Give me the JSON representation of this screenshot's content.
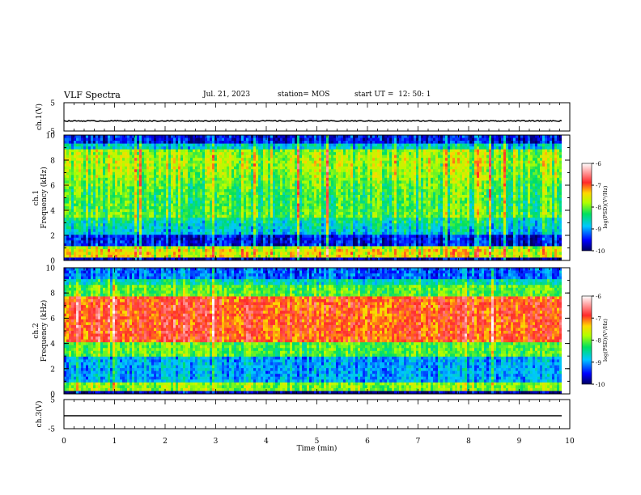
{
  "header": {
    "title": "VLF Spectra",
    "date": "Jul. 21, 2023",
    "station": "station= MOS",
    "start_ut": "start UT =  12: 50: 1"
  },
  "chart_data": [
    {
      "type": "line",
      "panel": "ch1-voltage",
      "ylabel": "ch.1(V)",
      "yticks": [
        "5",
        "-5"
      ],
      "ylim": [
        -5,
        5
      ],
      "xlim": [
        0,
        10
      ],
      "series": [
        {
          "x": [
            0,
            9.84
          ],
          "y": [
            0,
            0
          ]
        }
      ]
    },
    {
      "type": "heatmap",
      "panel": "ch1-spectrogram",
      "ylabel": "ch.1 Frequency (kHz)",
      "yticks": [
        "0",
        "2",
        "4",
        "6",
        "8",
        "10"
      ],
      "ylim": [
        0,
        10
      ],
      "xlim": [
        0,
        10
      ],
      "data_xmax": 9.84,
      "colorbar": {
        "label": "log(PSD)(V²/Hz)",
        "ticks": [
          "-6",
          "-7",
          "-8",
          "-9",
          "-10"
        ],
        "range": [
          -10,
          -6
        ]
      }
    },
    {
      "type": "heatmap",
      "panel": "ch2-spectrogram",
      "ylabel": "ch.2 Frequency (kHz)",
      "yticks": [
        "0",
        "2",
        "4",
        "6",
        "8",
        "10"
      ],
      "ylim": [
        0,
        10
      ],
      "xlim": [
        0,
        10
      ],
      "data_xmax": 9.84,
      "colorbar": {
        "label": "log(PSD)(V²/Hz)",
        "ticks": [
          "-6",
          "-7",
          "-8",
          "-9",
          "-10"
        ],
        "range": [
          -10,
          -6
        ]
      }
    },
    {
      "type": "line",
      "panel": "ch3-voltage",
      "ylabel": "ch.3(V)",
      "yticks": [
        "5",
        "-5"
      ],
      "ylim": [
        -5,
        5
      ],
      "xlim": [
        0,
        10
      ],
      "series": [
        {
          "x": [
            0,
            9.84
          ],
          "y": [
            0,
            0
          ]
        }
      ]
    }
  ],
  "xaxis": {
    "label": "Time (min)",
    "ticks": [
      "0",
      "1",
      "2",
      "3",
      "4",
      "5",
      "6",
      "7",
      "8",
      "9",
      "10"
    ]
  }
}
